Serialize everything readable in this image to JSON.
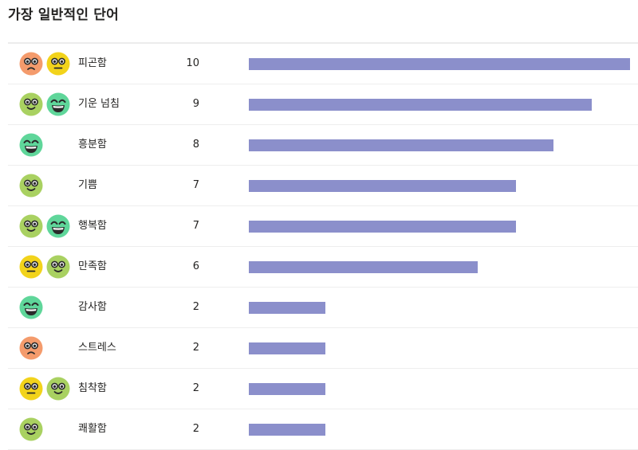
{
  "title": "가장 일반적인 단어",
  "colors": {
    "bar": "#8b8fcb"
  },
  "chart_data": {
    "type": "bar",
    "orientation": "horizontal",
    "categories": [
      "피곤함",
      "기운 넘침",
      "흥분함",
      "기쁨",
      "행복함",
      "만족함",
      "감사함",
      "스트레스",
      "침착함",
      "쾌활함"
    ],
    "values": [
      10,
      9,
      8,
      7,
      7,
      6,
      2,
      2,
      2,
      2
    ],
    "xlim": [
      0,
      10
    ],
    "title": "가장 일반적인 단어",
    "grid": false,
    "legend": "none"
  },
  "rows": [
    {
      "word": "피곤함",
      "count": "10",
      "value": 10,
      "faces": [
        "sad",
        "neutral"
      ]
    },
    {
      "word": "기운 넘침",
      "count": "9",
      "value": 9,
      "faces": [
        "smile",
        "grin"
      ]
    },
    {
      "word": "흥분함",
      "count": "8",
      "value": 8,
      "faces": [
        "grin"
      ]
    },
    {
      "word": "기쁨",
      "count": "7",
      "value": 7,
      "faces": [
        "smile"
      ]
    },
    {
      "word": "행복함",
      "count": "7",
      "value": 7,
      "faces": [
        "smile",
        "grin"
      ]
    },
    {
      "word": "만족함",
      "count": "6",
      "value": 6,
      "faces": [
        "neutral",
        "smile"
      ]
    },
    {
      "word": "감사함",
      "count": "2",
      "value": 2,
      "faces": [
        "grin"
      ]
    },
    {
      "word": "스트레스",
      "count": "2",
      "value": 2,
      "faces": [
        "sad"
      ]
    },
    {
      "word": "침착함",
      "count": "2",
      "value": 2,
      "faces": [
        "neutral",
        "smile"
      ]
    },
    {
      "word": "쾌활함",
      "count": "2",
      "value": 2,
      "faces": [
        "smile"
      ]
    }
  ],
  "face_colors": {
    "sad": "#f49b6c",
    "neutral": "#f2d31b",
    "smile": "#a9d161",
    "grin": "#5fd69a"
  },
  "face_icons": {
    "sad": "sad-face-icon",
    "neutral": "neutral-face-icon",
    "smile": "smile-face-icon",
    "grin": "grin-face-icon"
  }
}
